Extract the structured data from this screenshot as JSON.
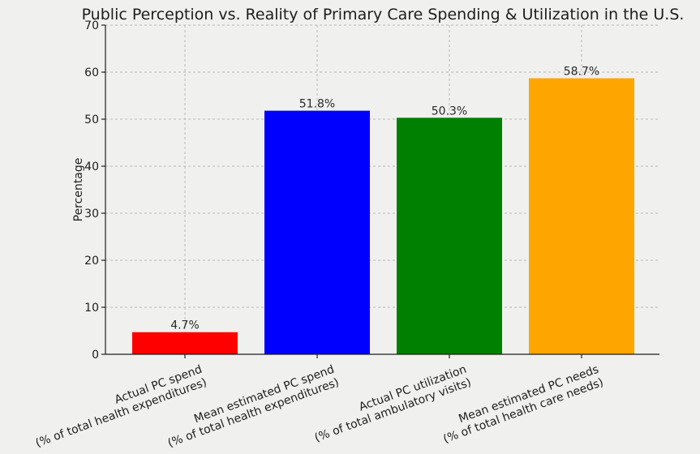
{
  "chart_data": {
    "type": "bar",
    "title": "Public Perception vs. Reality of Primary Care Spending & Utilization in the U.S.",
    "xlabel": "",
    "ylabel": "Percentage",
    "ylim": [
      0,
      70
    ],
    "yticks": [
      0,
      10,
      20,
      30,
      40,
      50,
      60,
      70
    ],
    "grid": true,
    "categories": [
      [
        "Actual PC spend",
        "(% of total health expenditures)"
      ],
      [
        "Mean estimated PC spend",
        "(% of total health expenditures)"
      ],
      [
        "Actual PC utilization",
        "(% of total ambulatory visits)"
      ],
      [
        "Mean estimated PC needs",
        "(% of total health care needs)"
      ]
    ],
    "values": [
      4.7,
      51.8,
      50.3,
      58.7
    ],
    "value_labels": [
      "4.7%",
      "51.8%",
      "50.3%",
      "58.7%"
    ],
    "colors": [
      "#ff0000",
      "#0000ff",
      "#008000",
      "#ffa500"
    ]
  }
}
